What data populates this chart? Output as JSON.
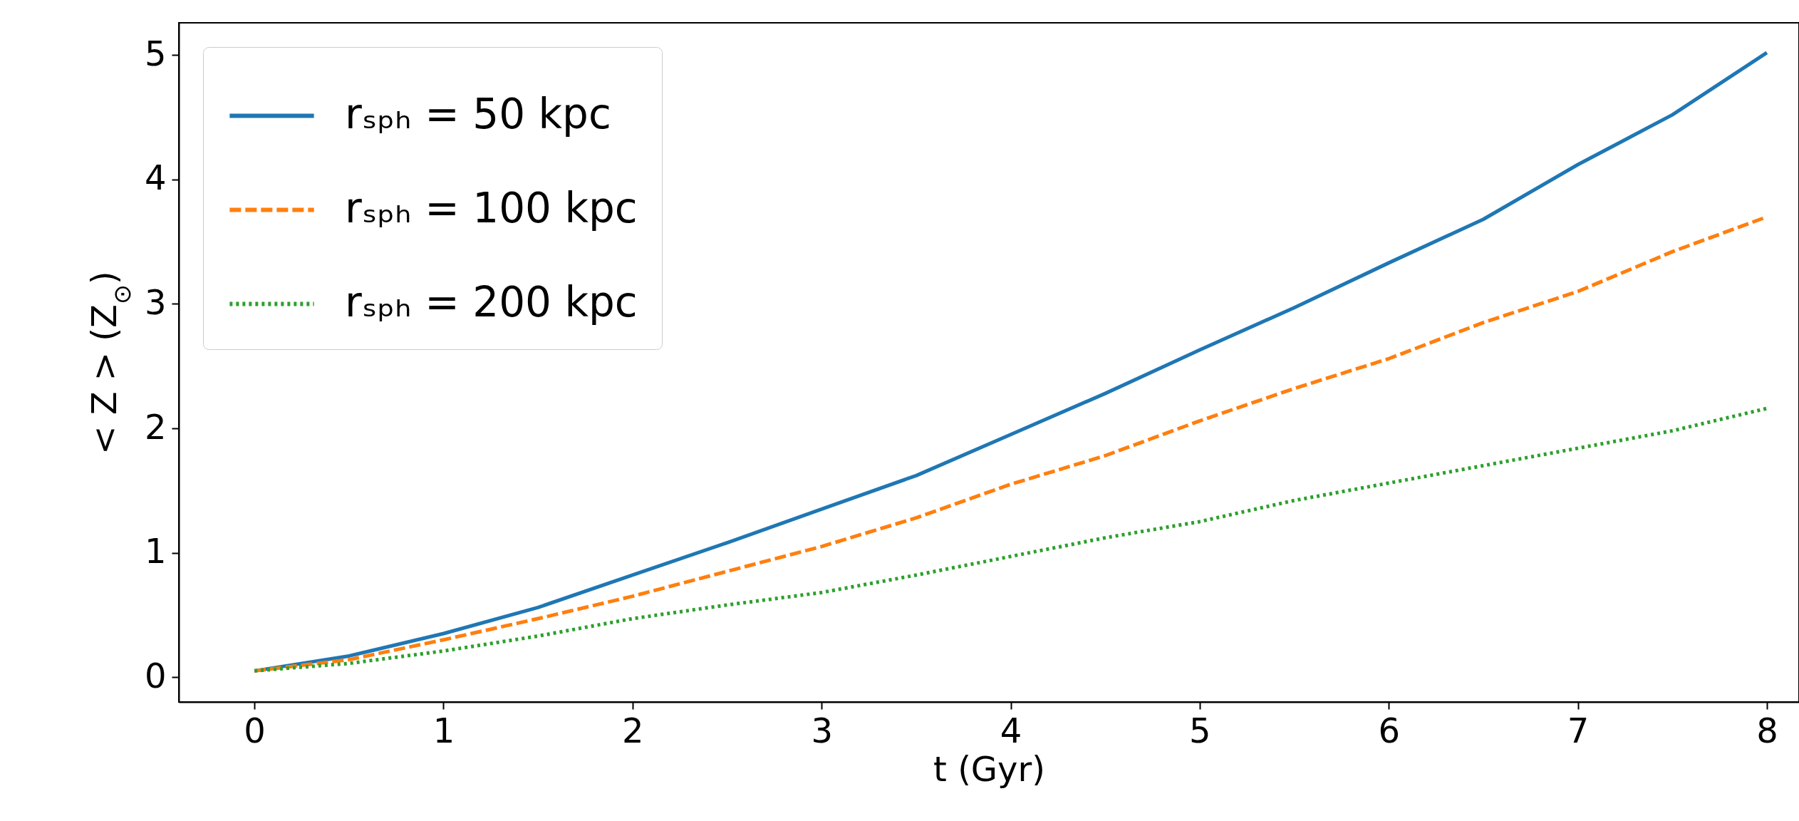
{
  "chart_data": {
    "type": "line",
    "xlabel": "t (Gyr)",
    "ylabel": "< Z > (Z$_{⊙}$)",
    "x": [
      0,
      0.5,
      1,
      1.5,
      2,
      2.5,
      3,
      3.5,
      4,
      4.5,
      5,
      5.5,
      6,
      6.5,
      7,
      7.5,
      8
    ],
    "series": [
      {
        "name": "rₛₚₕ = 50 kpc",
        "color": "#1f77b4",
        "line_style": "solid",
        "values": [
          0.05,
          0.17,
          0.35,
          0.56,
          0.82,
          1.08,
          1.35,
          1.62,
          1.95,
          2.28,
          2.63,
          2.97,
          3.33,
          3.68,
          4.12,
          4.52,
          5.02
        ]
      },
      {
        "name": "rₛₚₕ = 100 kpc",
        "color": "#ff7f0e",
        "line_style": "dashed",
        "values": [
          0.05,
          0.14,
          0.3,
          0.47,
          0.65,
          0.85,
          1.05,
          1.28,
          1.55,
          1.78,
          2.06,
          2.32,
          2.56,
          2.85,
          3.1,
          3.42,
          3.7
        ]
      },
      {
        "name": "rₛₚₕ = 200 kpc",
        "color": "#2ca02c",
        "line_style": "dotted",
        "values": [
          0.05,
          0.11,
          0.21,
          0.33,
          0.47,
          0.58,
          0.68,
          0.82,
          0.97,
          1.12,
          1.25,
          1.42,
          1.56,
          1.7,
          1.84,
          1.98,
          2.16
        ]
      }
    ],
    "xlim": [
      -0.4,
      8.17
    ],
    "ylim": [
      -0.2,
      5.26
    ],
    "xticks": [
      0,
      1,
      2,
      3,
      4,
      5,
      6,
      7,
      8
    ],
    "yticks": [
      0,
      1,
      2,
      3,
      4,
      5
    ],
    "grid": false,
    "legend": "top left"
  }
}
